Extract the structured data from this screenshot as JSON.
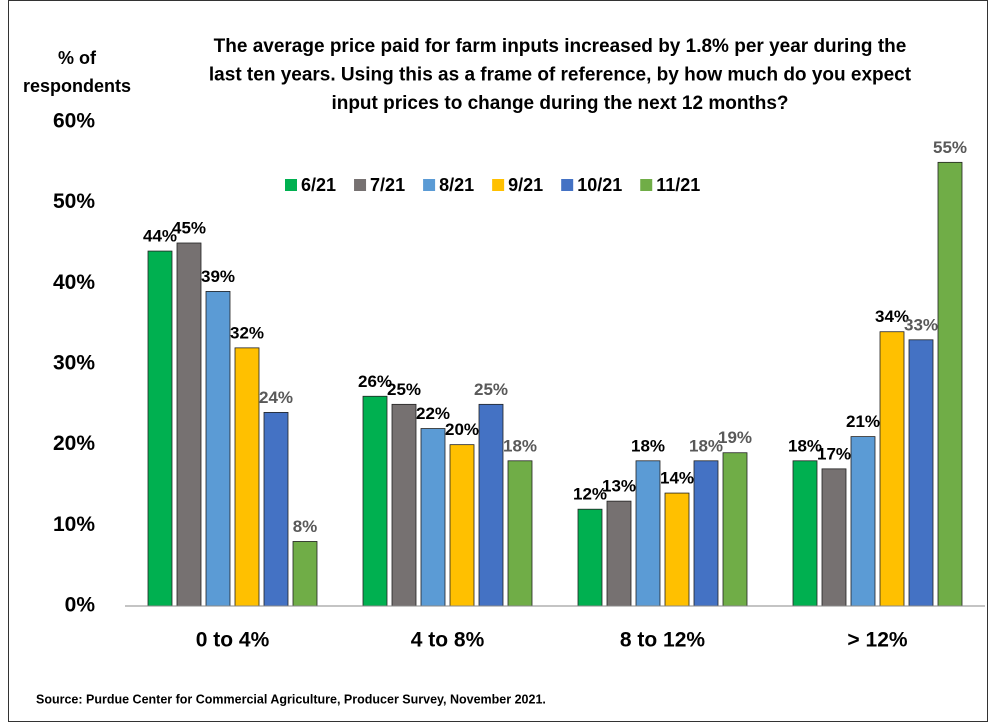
{
  "chart_data": {
    "type": "bar",
    "title": [
      "The average price paid for farm inputs increased by 1.8% per year during the",
      "last ten years.  Using this as a frame of reference, by how much do you expect",
      "input prices to change during the next 12 months?"
    ],
    "y_label": [
      "% of",
      "respondents"
    ],
    "source": "Source:  Purdue Center for Commercial Agriculture, Producer Survey, November 2021.",
    "categories": [
      "0 to 4%",
      "4 to 8%",
      "8 to 12%",
      "> 12%"
    ],
    "series": [
      {
        "name": "6/21",
        "color": "#00b050",
        "label_color": "#000000",
        "values": [
          44,
          26,
          12,
          18
        ],
        "value_labels": [
          "44%",
          "26%",
          "12%",
          "18%"
        ]
      },
      {
        "name": "7/21",
        "color": "#767171",
        "label_color": "#000000",
        "values": [
          45,
          25,
          13,
          17
        ],
        "value_labels": [
          "45%",
          "25%",
          "13%",
          "17%"
        ]
      },
      {
        "name": "8/21",
        "color": "#5b9bd5",
        "label_color": "#000000",
        "values": [
          39,
          22,
          18,
          21
        ],
        "value_labels": [
          "39%",
          "22%",
          "18%",
          "21%"
        ]
      },
      {
        "name": "9/21",
        "color": "#ffc000",
        "label_color": "#000000",
        "values": [
          32,
          20,
          14,
          34
        ],
        "value_labels": [
          "32%",
          "20%",
          "14%",
          "34%"
        ]
      },
      {
        "name": "10/21",
        "color": "#4472c4",
        "label_color": "#595959",
        "values": [
          24,
          25,
          18,
          33
        ],
        "value_labels": [
          "24%",
          "25%",
          "18%",
          "33%"
        ]
      },
      {
        "name": "11/21",
        "color": "#70ad47",
        "label_color": "#595959",
        "values": [
          8,
          18,
          19,
          55
        ],
        "value_labels": [
          "8%",
          "18%",
          "19%",
          "55%"
        ]
      }
    ],
    "ylim": [
      0,
      60
    ],
    "yticks": [
      {
        "value": 0,
        "label": "0%"
      },
      {
        "value": 10,
        "label": "10%"
      },
      {
        "value": 20,
        "label": "20%"
      },
      {
        "value": 30,
        "label": "30%"
      },
      {
        "value": 40,
        "label": "40%"
      },
      {
        "value": 50,
        "label": "50%"
      },
      {
        "value": 60,
        "label": "60%"
      }
    ],
    "grid": false,
    "legend": "top"
  }
}
